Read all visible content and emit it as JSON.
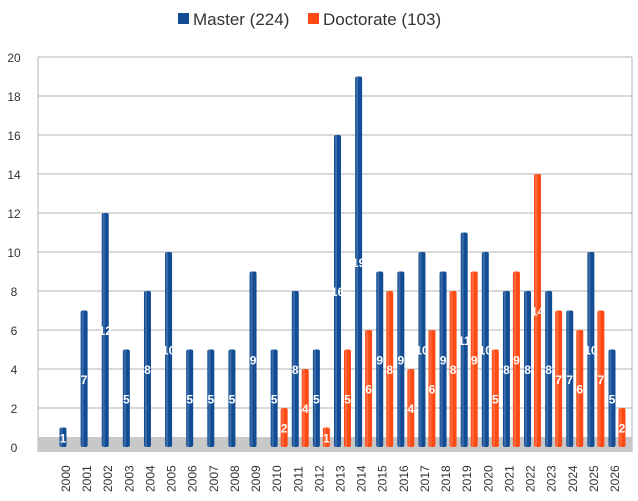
{
  "chart_data": {
    "type": "bar",
    "title": "",
    "xlabel": "",
    "ylabel": "",
    "ylim": [
      0,
      20
    ],
    "yticks": [
      0,
      2,
      4,
      6,
      8,
      10,
      12,
      14,
      16,
      18,
      20
    ],
    "grid": true,
    "legend_placement": "top-center",
    "categories": [
      "2000",
      "2001",
      "2002",
      "2003",
      "2004",
      "2005",
      "2006",
      "2007",
      "2008",
      "2009",
      "2010",
      "2011",
      "2012",
      "2013",
      "2014",
      "2015",
      "2016",
      "2017",
      "2018",
      "2019",
      "2020",
      "2021",
      "2022",
      "2023",
      "2024",
      "2025",
      "2026"
    ],
    "series": [
      {
        "name": "Master",
        "legend": "Master (224)",
        "color": "#114c94",
        "values": [
          1,
          7,
          12,
          5,
          8,
          10,
          5,
          5,
          5,
          9,
          5,
          8,
          5,
          16,
          19,
          9,
          9,
          10,
          9,
          11,
          10,
          8,
          8,
          8,
          7,
          10,
          5
        ]
      },
      {
        "name": "Doctorate",
        "legend": "Doctorate (103)",
        "color": "#ff4a14",
        "values": [
          null,
          null,
          null,
          null,
          null,
          null,
          null,
          null,
          null,
          null,
          2,
          4,
          1,
          5,
          6,
          8,
          4,
          6,
          8,
          9,
          5,
          9,
          14,
          7,
          6,
          7,
          2
        ]
      }
    ]
  }
}
